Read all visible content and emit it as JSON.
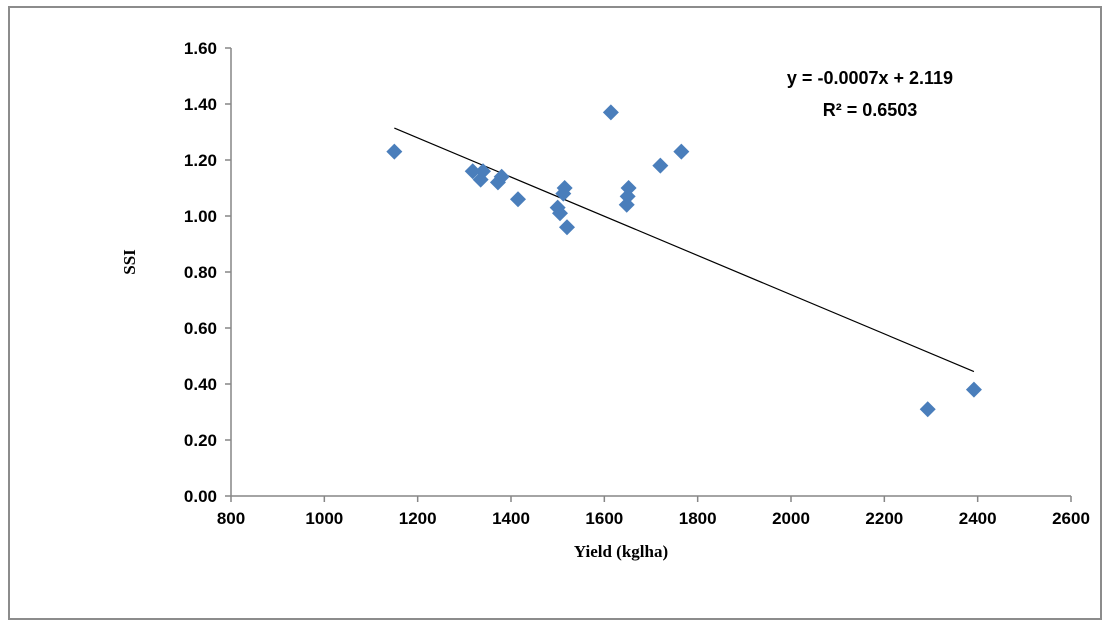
{
  "chart_data": {
    "type": "scatter",
    "xlabel": "Yield (kglha)",
    "ylabel": "SSI",
    "xlim": [
      800,
      2600
    ],
    "ylim": [
      0,
      1.6
    ],
    "x_ticks": [
      "800",
      "1000",
      "1200",
      "1400",
      "1600",
      "1800",
      "2000",
      "2200",
      "2400",
      "2600"
    ],
    "y_ticks": [
      "0.00",
      "0.20",
      "0.40",
      "0.60",
      "0.80",
      "1.00",
      "1.20",
      "1.40",
      "1.60"
    ],
    "grid": false,
    "legend": "none",
    "marker": "diamond",
    "series": [
      {
        "color": "#4a7ebb",
        "points": [
          {
            "x": 1150,
            "y": 1.23
          },
          {
            "x": 1318,
            "y": 1.16
          },
          {
            "x": 1335,
            "y": 1.13
          },
          {
            "x": 1340,
            "y": 1.16
          },
          {
            "x": 1372,
            "y": 1.12
          },
          {
            "x": 1380,
            "y": 1.14
          },
          {
            "x": 1415,
            "y": 1.06
          },
          {
            "x": 1500,
            "y": 1.03
          },
          {
            "x": 1505,
            "y": 1.01
          },
          {
            "x": 1512,
            "y": 1.08
          },
          {
            "x": 1515,
            "y": 1.1
          },
          {
            "x": 1520,
            "y": 0.96
          },
          {
            "x": 1614,
            "y": 1.37
          },
          {
            "x": 1648,
            "y": 1.04
          },
          {
            "x": 1650,
            "y": 1.07
          },
          {
            "x": 1652,
            "y": 1.1
          },
          {
            "x": 1720,
            "y": 1.18
          },
          {
            "x": 1765,
            "y": 1.23
          },
          {
            "x": 2293,
            "y": 0.31
          },
          {
            "x": 2392,
            "y": 0.38
          }
        ]
      }
    ],
    "trendline": {
      "slope": -0.0007,
      "intercept": 2.119,
      "x_range": [
        1150,
        2392
      ],
      "color": "#000000"
    },
    "annotations": {
      "equation": "y = -0.0007x + 2.119",
      "r_squared": "R² = 0.6503"
    }
  }
}
